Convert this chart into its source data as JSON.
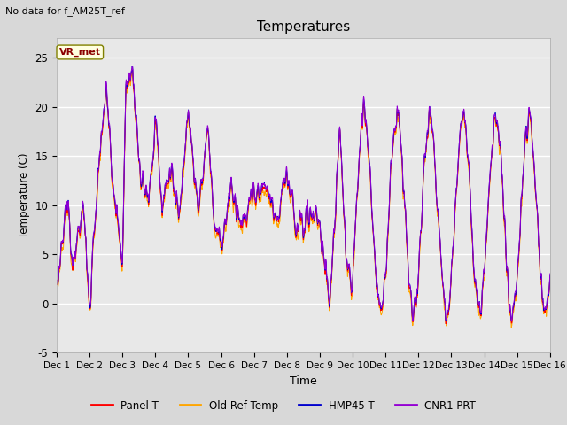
{
  "title": "Temperatures",
  "xlabel": "Time",
  "ylabel": "Temperature (C)",
  "ylim": [
    -5,
    27
  ],
  "xlim": [
    0,
    15
  ],
  "annotation": "No data for f_AM25T_ref",
  "vr_met_label": "VR_met",
  "legend_labels": [
    "Panel T",
    "Old Ref Temp",
    "HMP45 T",
    "CNR1 PRT"
  ],
  "legend_colors": [
    "#ff0000",
    "#ffa500",
    "#0000cd",
    "#9400d3"
  ],
  "plot_bg_color": "#e8e8e8",
  "xtick_labels": [
    "Dec 1",
    "Dec 2",
    "Dec 3",
    "Dec 4",
    "Dec 5",
    "Dec 6",
    "Dec 7",
    "Dec 8",
    "Dec 9",
    "Dec 10",
    "Dec 11",
    "Dec 12",
    "Dec 13",
    "Dec 14",
    "Dec 15",
    "Dec 16"
  ],
  "ytick_labels": [
    "-5",
    "0",
    "5",
    "10",
    "15",
    "20",
    "25"
  ],
  "ytick_values": [
    -5,
    0,
    5,
    10,
    15,
    20,
    25
  ],
  "n_points": 2160,
  "seed": 7
}
